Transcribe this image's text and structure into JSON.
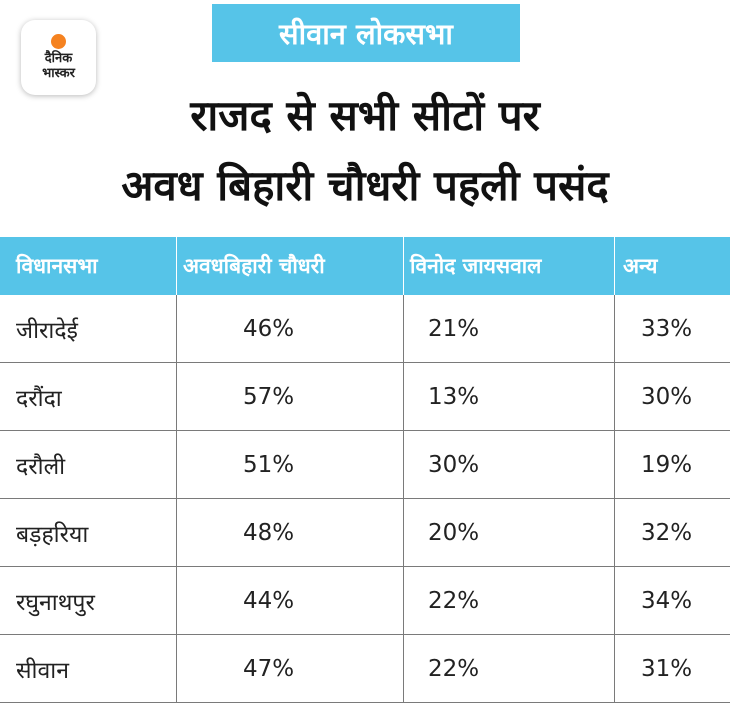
{
  "logo": {
    "line1": "दैनिक",
    "line2": "भास्कर",
    "accent": "#f58220"
  },
  "tag": "सीवान लोकसभा",
  "title": {
    "line1": "राजद से सभी सीटों पर",
    "line2": "अवध बिहारी चौधरी पहली पसंद"
  },
  "colors": {
    "header_bg": "#56c4e8",
    "border": "#7a7a7a"
  },
  "chart_data": {
    "type": "table",
    "columns": [
      "विधानसभा",
      "अवधबिहारी चौधरी",
      "विनोद जायसवाल",
      "अन्य"
    ],
    "rows": [
      [
        "जीरादेई",
        "46%",
        "21%",
        "33%"
      ],
      [
        "दरौंदा",
        "57%",
        "13%",
        "30%"
      ],
      [
        "दरौली",
        "51%",
        "30%",
        "19%"
      ],
      [
        "बड़हरिया",
        "48%",
        "20%",
        "32%"
      ],
      [
        "रघुनाथपुर",
        "44%",
        "22%",
        "34%"
      ],
      [
        "सीवान",
        "47%",
        "22%",
        "31%"
      ]
    ]
  }
}
